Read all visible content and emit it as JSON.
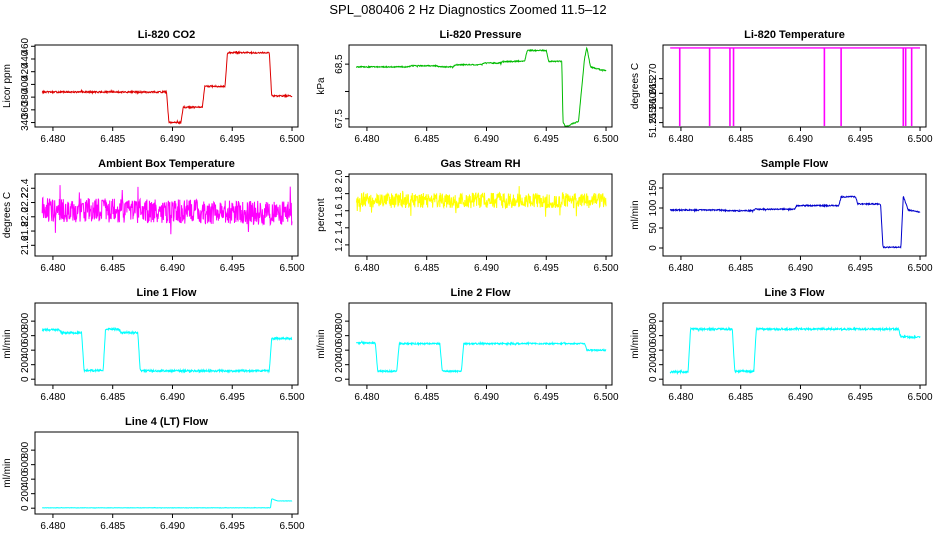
{
  "main_title": "SPL_080406  2 Hz Diagnostics Zoomed 11.5–12",
  "colors": {
    "co2": "#dd0000",
    "pressure": "#00bb00",
    "temperature": "#ff00ff",
    "ambient": "#ff00ff",
    "rh": "#ffff00",
    "sample_flow": "#0000cc",
    "line_flow": "#00ffff"
  },
  "chart_data": [
    {
      "id": "co2",
      "type": "line",
      "title": "Li-820 CO2",
      "ylabel": "Licor ppm",
      "xlim": [
        6.4785,
        6.5005
      ],
      "ylim": [
        333,
        462
      ],
      "xticks": [
        "6.480",
        "6.485",
        "6.490",
        "6.495",
        "6.500"
      ],
      "yticks": [
        "340",
        "360",
        "380",
        "400",
        "420",
        "440",
        "460"
      ],
      "color_key": "co2",
      "noise": 1.2,
      "series": [
        [
          6.4791,
          388
        ],
        [
          6.4895,
          388
        ],
        [
          6.4897,
          340
        ],
        [
          6.4907,
          340
        ],
        [
          6.4909,
          364
        ],
        [
          6.4925,
          364
        ],
        [
          6.4927,
          397
        ],
        [
          6.4944,
          397
        ],
        [
          6.4946,
          450
        ],
        [
          6.4981,
          450
        ],
        [
          6.4983,
          382
        ],
        [
          6.5,
          382
        ]
      ]
    },
    {
      "id": "pressure",
      "type": "line",
      "title": "Li-820 Pressure",
      "ylabel": "kPa",
      "xlim": [
        6.4785,
        6.5005
      ],
      "ylim": [
        67.35,
        68.85
      ],
      "xticks": [
        "6.480",
        "6.485",
        "6.490",
        "6.495",
        "6.500"
      ],
      "yticks": [
        "67.5",
        "",
        "68.5"
      ],
      "color_key": "pressure",
      "noise": 0.01,
      "series": [
        [
          6.4791,
          68.45
        ],
        [
          6.4835,
          68.45
        ],
        [
          6.4837,
          68.47
        ],
        [
          6.4858,
          68.47
        ],
        [
          6.486,
          68.45
        ],
        [
          6.4872,
          68.45
        ],
        [
          6.4874,
          68.49
        ],
        [
          6.4896,
          68.49
        ],
        [
          6.4898,
          68.52
        ],
        [
          6.4912,
          68.52
        ],
        [
          6.4914,
          68.55
        ],
        [
          6.4932,
          68.55
        ],
        [
          6.4934,
          68.75
        ],
        [
          6.495,
          68.75
        ],
        [
          6.4952,
          68.55
        ],
        [
          6.4963,
          68.55
        ],
        [
          6.4964,
          67.45
        ],
        [
          6.4966,
          67.35
        ],
        [
          6.4971,
          67.4
        ],
        [
          6.4977,
          67.45
        ],
        [
          6.4982,
          68.6
        ],
        [
          6.4984,
          68.8
        ],
        [
          6.4987,
          68.45
        ],
        [
          6.4995,
          68.4
        ],
        [
          6.5,
          68.38
        ]
      ]
    },
    {
      "id": "temperature",
      "type": "line",
      "title": "Li-820 Temperature",
      "ylabel": "degrees C",
      "xlim": [
        6.4785,
        6.5005
      ],
      "ylim": [
        51.2535,
        51.2815
      ],
      "xticks": [
        "6.480",
        "6.485",
        "6.490",
        "6.495",
        "6.500"
      ],
      "yticks": [
        "51.255",
        "51.260",
        "51.265",
        "51.270"
      ],
      "color_key": "temperature",
      "noise": 0.0,
      "series": [
        [
          6.4791,
          51.2805
        ],
        [
          6.5,
          51.2805
        ]
      ],
      "spikes": [
        6.4799,
        6.4824,
        6.4841,
        6.4844,
        6.492,
        6.4934,
        6.4986,
        6.4988,
        6.4993
      ]
    },
    {
      "id": "ambient",
      "type": "line",
      "title": "Ambient Box Temperature",
      "ylabel": "degrees C",
      "xlim": [
        6.4785,
        6.5005
      ],
      "ylim": [
        21.45,
        22.6
      ],
      "xticks": [
        "6.480",
        "6.485",
        "6.490",
        "6.495",
        "6.500"
      ],
      "yticks": [
        "21.6",
        "21.8",
        "22.0",
        "22.2",
        "22.4"
      ],
      "color_key": "ambient",
      "noise": 0.17,
      "series": [
        [
          6.4791,
          22.1
        ],
        [
          6.5,
          22.05
        ]
      ]
    },
    {
      "id": "rh",
      "type": "line",
      "title": "Gas Stream RH",
      "ylabel": "percent",
      "xlim": [
        6.4785,
        6.5005
      ],
      "ylim": [
        1.07,
        2.03
      ],
      "xticks": [
        "6.480",
        "6.485",
        "6.490",
        "6.495",
        "6.500"
      ],
      "yticks": [
        "1.2",
        "1.4",
        "1.6",
        "1.8",
        "2.0"
      ],
      "color_key": "rh",
      "noise": 0.09,
      "series": [
        [
          6.4791,
          1.72
        ],
        [
          6.5,
          1.72
        ]
      ]
    },
    {
      "id": "sample_flow",
      "type": "line",
      "title": "Sample Flow",
      "ylabel": "ml/min",
      "xlim": [
        6.4785,
        6.5005
      ],
      "ylim": [
        -20,
        185
      ],
      "xticks": [
        "6.480",
        "6.485",
        "6.490",
        "6.495",
        "6.500"
      ],
      "yticks": [
        "0",
        "50",
        "100",
        "150"
      ],
      "color_key": "sample_flow",
      "noise": 1.5,
      "series": [
        [
          6.4791,
          95
        ],
        [
          6.4835,
          95
        ],
        [
          6.4837,
          93
        ],
        [
          6.486,
          93
        ],
        [
          6.4862,
          97
        ],
        [
          6.4895,
          97
        ],
        [
          6.4897,
          106
        ],
        [
          6.4932,
          106
        ],
        [
          6.4934,
          128
        ],
        [
          6.4946,
          128
        ],
        [
          6.4948,
          110
        ],
        [
          6.4967,
          110
        ],
        [
          6.4969,
          2
        ],
        [
          6.4984,
          2
        ],
        [
          6.4986,
          130
        ],
        [
          6.499,
          95
        ],
        [
          6.5,
          90
        ]
      ]
    },
    {
      "id": "line1",
      "type": "line",
      "title": "Line 1 Flow",
      "ylabel": "ml/min",
      "xlim": [
        6.4785,
        6.5005
      ],
      "ylim": [
        -80,
        1050
      ],
      "xticks": [
        "6.480",
        "6.485",
        "6.490",
        "6.495",
        "6.500"
      ],
      "yticks": [
        "0",
        "200",
        "400",
        "600",
        "800"
      ],
      "color_key": "line_flow",
      "noise": 14,
      "series": [
        [
          6.4791,
          680
        ],
        [
          6.4805,
          680
        ],
        [
          6.4807,
          640
        ],
        [
          6.4824,
          640
        ],
        [
          6.4826,
          120
        ],
        [
          6.4842,
          120
        ],
        [
          6.4844,
          690
        ],
        [
          6.4855,
          690
        ],
        [
          6.4857,
          640
        ],
        [
          6.4871,
          640
        ],
        [
          6.4873,
          115
        ],
        [
          6.4981,
          115
        ],
        [
          6.4983,
          560
        ],
        [
          6.5,
          560
        ]
      ]
    },
    {
      "id": "line2",
      "type": "line",
      "title": "Line 2 Flow",
      "ylabel": "ml/min",
      "xlim": [
        6.4785,
        6.5005
      ],
      "ylim": [
        -80,
        1050
      ],
      "xticks": [
        "6.480",
        "6.485",
        "6.490",
        "6.495",
        "6.500"
      ],
      "yticks": [
        "0",
        "200",
        "400",
        "600",
        "800"
      ],
      "color_key": "line_flow",
      "noise": 10,
      "series": [
        [
          6.4791,
          500
        ],
        [
          6.4807,
          500
        ],
        [
          6.4809,
          110
        ],
        [
          6.4825,
          110
        ],
        [
          6.4827,
          490
        ],
        [
          6.4861,
          490
        ],
        [
          6.4863,
          110
        ],
        [
          6.4879,
          110
        ],
        [
          6.4881,
          490
        ],
        [
          6.4982,
          490
        ],
        [
          6.4984,
          400
        ],
        [
          6.5,
          400
        ]
      ]
    },
    {
      "id": "line3",
      "type": "line",
      "title": "Line 3 Flow",
      "ylabel": "ml/min",
      "xlim": [
        6.4785,
        6.5005
      ],
      "ylim": [
        -80,
        1050
      ],
      "xticks": [
        "6.480",
        "6.485",
        "6.490",
        "6.495",
        "6.500"
      ],
      "yticks": [
        "0",
        "200",
        "400",
        "600",
        "800"
      ],
      "color_key": "line_flow",
      "noise": 14,
      "series": [
        [
          6.4791,
          100
        ],
        [
          6.4806,
          100
        ],
        [
          6.4808,
          690
        ],
        [
          6.4843,
          690
        ],
        [
          6.4845,
          110
        ],
        [
          6.4861,
          110
        ],
        [
          6.4863,
          690
        ],
        [
          6.4982,
          690
        ],
        [
          6.4984,
          580
        ],
        [
          6.5,
          580
        ]
      ]
    },
    {
      "id": "line4",
      "type": "line",
      "title": "Line 4 (LT) Flow",
      "ylabel": "ml/min",
      "xlim": [
        6.4785,
        6.5005
      ],
      "ylim": [
        -80,
        1050
      ],
      "xticks": [
        "6.480",
        "6.485",
        "6.490",
        "6.495",
        "6.500"
      ],
      "yticks": [
        "0",
        "200",
        "400",
        "600",
        "800"
      ],
      "color_key": "line_flow",
      "noise": 2,
      "series": [
        [
          6.4791,
          5
        ],
        [
          6.4982,
          5
        ],
        [
          6.4983,
          130
        ],
        [
          6.4988,
          100
        ],
        [
          6.5,
          100
        ]
      ]
    }
  ]
}
